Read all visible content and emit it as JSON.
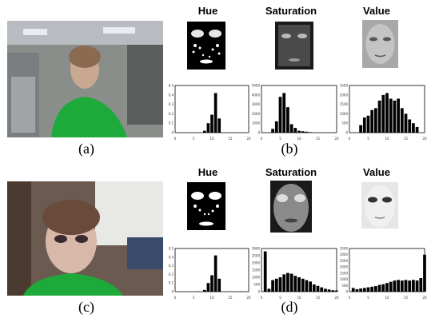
{
  "captions": {
    "a": "(a)",
    "b": "(b)",
    "c": "(c)",
    "d": "(d)"
  },
  "row1": {
    "hue_title": "Hue",
    "sat_title": "Saturation",
    "val_title": "Value"
  },
  "row2": {
    "hue_title": "Hue",
    "sat_title": "Saturation",
    "val_title": "Value"
  },
  "chart_data": [
    {
      "type": "bar",
      "panel": "b-hue",
      "x": [
        8,
        9,
        10,
        11,
        12
      ],
      "values": [
        0.02,
        0.1,
        0.19,
        0.42,
        0.15
      ],
      "xlim": [
        0,
        20
      ],
      "ylim": [
        0,
        0.5
      ],
      "xticks": [
        "0",
        "5",
        "10",
        "15",
        "20"
      ],
      "yticks": [
        "0",
        "0.1",
        "0.2",
        "0.3",
        "0.4",
        "0.5"
      ]
    },
    {
      "type": "bar",
      "panel": "b-saturation",
      "x": [
        3,
        4,
        5,
        6,
        7,
        8,
        9,
        10,
        11,
        12,
        13
      ],
      "values": [
        400,
        1200,
        3800,
        4200,
        2700,
        900,
        500,
        200,
        150,
        100,
        50
      ],
      "xlim": [
        0,
        20
      ],
      "ylim": [
        0,
        5000
      ],
      "xticks": [
        "0",
        "5",
        "10",
        "15",
        "20"
      ],
      "yticks": [
        "0",
        "1000",
        "2000",
        "3000",
        "4000",
        "5000"
      ]
    },
    {
      "type": "bar",
      "panel": "b-value",
      "x": [
        3,
        4,
        5,
        6,
        7,
        8,
        9,
        10,
        11,
        12,
        13,
        14,
        15,
        16,
        17,
        18
      ],
      "values": [
        400,
        800,
        900,
        1200,
        1300,
        1700,
        2000,
        2100,
        1800,
        1700,
        1800,
        1300,
        1000,
        700,
        500,
        300
      ],
      "xlim": [
        0,
        20
      ],
      "ylim": [
        0,
        2500
      ],
      "xticks": [
        "0",
        "5",
        "10",
        "15",
        "20"
      ],
      "yticks": [
        "0",
        "500",
        "1000",
        "1500",
        "2000",
        "2500"
      ]
    },
    {
      "type": "bar",
      "panel": "d-hue",
      "x": [
        8,
        9,
        10,
        11,
        12
      ],
      "values": [
        0.02,
        0.1,
        0.19,
        0.42,
        0.15
      ],
      "xlim": [
        0,
        20
      ],
      "ylim": [
        0,
        0.5
      ],
      "xticks": [
        "0",
        "5",
        "10",
        "15",
        "20"
      ],
      "yticks": [
        "0",
        "0.1",
        "0.2",
        "0.3",
        "0.4",
        "0.5"
      ]
    },
    {
      "type": "bar",
      "panel": "d-saturation",
      "x": [
        1,
        2,
        3,
        4,
        5,
        6,
        7,
        8,
        9,
        10,
        11,
        12,
        13,
        14,
        15,
        16,
        17,
        18,
        19,
        20
      ],
      "values": [
        2800,
        200,
        800,
        900,
        1000,
        1200,
        1300,
        1250,
        1100,
        1000,
        900,
        800,
        700,
        500,
        400,
        300,
        200,
        150,
        100,
        80
      ],
      "xlim": [
        0,
        20
      ],
      "ylim": [
        0,
        3000
      ],
      "xticks": [
        "0",
        "5",
        "10",
        "15",
        "20"
      ],
      "yticks": [
        "0",
        "500",
        "1000",
        "1500",
        "2000",
        "2500",
        "3000"
      ]
    },
    {
      "type": "bar",
      "panel": "d-value",
      "x": [
        1,
        2,
        3,
        4,
        5,
        6,
        7,
        8,
        9,
        10,
        11,
        12,
        13,
        14,
        15,
        16,
        17,
        18,
        19,
        20
      ],
      "values": [
        300,
        200,
        250,
        300,
        350,
        400,
        450,
        550,
        600,
        700,
        800,
        900,
        950,
        900,
        950,
        900,
        950,
        900,
        1100,
        3000
      ],
      "xlim": [
        0,
        20
      ],
      "ylim": [
        0,
        3500
      ],
      "xticks": [
        "0",
        "5",
        "10",
        "15",
        "20"
      ],
      "yticks": [
        "0",
        "500",
        "1000",
        "1500",
        "2000",
        "2500",
        "3000",
        "3500"
      ]
    }
  ]
}
